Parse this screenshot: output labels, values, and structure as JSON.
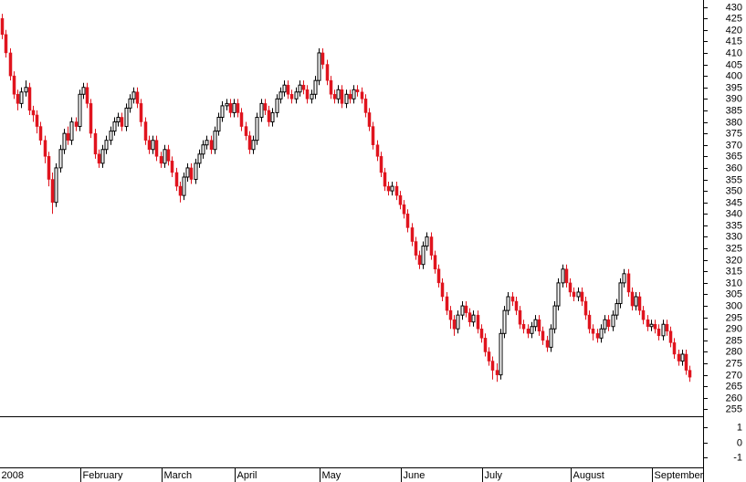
{
  "chart_data": [
    {
      "type": "candlestick",
      "up_color": "#ffffff",
      "down_color": "#e0141e",
      "xlim": [
        -0.5,
        181.5
      ],
      "ylim": [
        252,
        433
      ],
      "yticks": [
        255,
        260,
        265,
        270,
        275,
        280,
        285,
        290,
        295,
        300,
        305,
        310,
        315,
        320,
        325,
        330,
        335,
        340,
        345,
        350,
        355,
        360,
        365,
        370,
        375,
        380,
        385,
        390,
        395,
        400,
        405,
        410,
        415,
        420,
        425,
        430
      ],
      "xticks": [
        {
          "value": 0,
          "label": "2008"
        },
        {
          "value": 21,
          "label": "February"
        },
        {
          "value": 42,
          "label": "March"
        },
        {
          "value": 61,
          "label": "April"
        },
        {
          "value": 83,
          "label": "May"
        },
        {
          "value": 104,
          "label": "June"
        },
        {
          "value": 125,
          "label": "July"
        },
        {
          "value": 148,
          "label": "August"
        },
        {
          "value": 169,
          "label": "September"
        }
      ],
      "ohlc": [
        [
          425,
          427,
          416,
          418
        ],
        [
          418,
          420,
          408,
          410
        ],
        [
          410,
          412,
          398,
          400
        ],
        [
          400,
          402,
          390,
          392
        ],
        [
          392,
          394,
          385,
          388
        ],
        [
          388,
          395,
          386,
          393
        ],
        [
          393,
          398,
          391,
          395
        ],
        [
          395,
          397,
          383,
          385
        ],
        [
          385,
          387,
          380,
          383
        ],
        [
          383,
          385,
          375,
          378
        ],
        [
          378,
          380,
          370,
          372
        ],
        [
          372,
          374,
          362,
          365
        ],
        [
          365,
          367,
          352,
          355
        ],
        [
          355,
          358,
          340,
          345
        ],
        [
          345,
          362,
          343,
          360
        ],
        [
          360,
          370,
          358,
          368
        ],
        [
          368,
          377,
          366,
          375
        ],
        [
          375,
          378,
          370,
          372
        ],
        [
          372,
          382,
          370,
          380
        ],
        [
          380,
          382,
          376,
          378
        ],
        [
          378,
          394,
          376,
          392
        ],
        [
          392,
          397,
          390,
          395
        ],
        [
          395,
          397,
          386,
          388
        ],
        [
          388,
          390,
          373,
          375
        ],
        [
          375,
          377,
          364,
          366
        ],
        [
          366,
          368,
          360,
          362
        ],
        [
          362,
          370,
          360,
          368
        ],
        [
          368,
          374,
          366,
          372
        ],
        [
          372,
          378,
          370,
          376
        ],
        [
          376,
          382,
          374,
          380
        ],
        [
          380,
          384,
          378,
          382
        ],
        [
          382,
          384,
          376,
          378
        ],
        [
          378,
          388,
          376,
          386
        ],
        [
          386,
          392,
          384,
          390
        ],
        [
          390,
          395,
          388,
          393
        ],
        [
          393,
          395,
          386,
          388
        ],
        [
          388,
          390,
          378,
          380
        ],
        [
          380,
          382,
          370,
          372
        ],
        [
          372,
          374,
          366,
          368
        ],
        [
          368,
          374,
          366,
          372
        ],
        [
          372,
          374,
          363,
          365
        ],
        [
          365,
          367,
          360,
          362
        ],
        [
          362,
          370,
          360,
          368
        ],
        [
          368,
          370,
          361,
          363
        ],
        [
          363,
          365,
          356,
          358
        ],
        [
          358,
          360,
          350,
          352
        ],
        [
          352,
          354,
          345,
          348
        ],
        [
          348,
          358,
          346,
          356
        ],
        [
          356,
          362,
          354,
          360
        ],
        [
          360,
          362,
          353,
          355
        ],
        [
          355,
          364,
          353,
          362
        ],
        [
          362,
          368,
          360,
          366
        ],
        [
          366,
          372,
          364,
          370
        ],
        [
          370,
          374,
          368,
          372
        ],
        [
          372,
          374,
          366,
          368
        ],
        [
          368,
          378,
          366,
          376
        ],
        [
          376,
          384,
          374,
          382
        ],
        [
          382,
          389,
          380,
          387
        ],
        [
          387,
          390,
          385,
          388
        ],
        [
          388,
          390,
          382,
          384
        ],
        [
          384,
          390,
          382,
          388
        ],
        [
          388,
          390,
          382,
          384
        ],
        [
          384,
          386,
          376,
          378
        ],
        [
          378,
          380,
          372,
          374
        ],
        [
          374,
          376,
          366,
          368
        ],
        [
          368,
          374,
          366,
          372
        ],
        [
          372,
          384,
          370,
          382
        ],
        [
          382,
          390,
          380,
          388
        ],
        [
          388,
          390,
          383,
          385
        ],
        [
          385,
          387,
          378,
          380
        ],
        [
          380,
          386,
          378,
          384
        ],
        [
          384,
          392,
          382,
          390
        ],
        [
          390,
          395,
          388,
          393
        ],
        [
          393,
          398,
          391,
          396
        ],
        [
          396,
          398,
          390,
          392
        ],
        [
          392,
          394,
          388,
          390
        ],
        [
          390,
          395,
          388,
          393
        ],
        [
          393,
          398,
          391,
          396
        ],
        [
          396,
          398,
          392,
          394
        ],
        [
          394,
          396,
          388,
          390
        ],
        [
          390,
          394,
          388,
          392
        ],
        [
          392,
          400,
          390,
          398
        ],
        [
          398,
          412,
          396,
          410
        ],
        [
          410,
          412,
          403,
          405
        ],
        [
          405,
          407,
          396,
          398
        ],
        [
          398,
          400,
          390,
          392
        ],
        [
          392,
          394,
          388,
          390
        ],
        [
          390,
          396,
          388,
          394
        ],
        [
          394,
          396,
          386,
          388
        ],
        [
          388,
          394,
          386,
          392
        ],
        [
          392,
          394,
          388,
          390
        ],
        [
          390,
          396,
          388,
          394
        ],
        [
          394,
          396,
          391,
          393
        ],
        [
          393,
          395,
          388,
          390
        ],
        [
          390,
          392,
          382,
          384
        ],
        [
          384,
          386,
          376,
          378
        ],
        [
          378,
          380,
          368,
          370
        ],
        [
          370,
          372,
          363,
          365
        ],
        [
          365,
          367,
          356,
          358
        ],
        [
          358,
          360,
          350,
          352
        ],
        [
          352,
          354,
          348,
          350
        ],
        [
          350,
          354,
          348,
          352
        ],
        [
          352,
          354,
          346,
          348
        ],
        [
          348,
          350,
          342,
          344
        ],
        [
          344,
          346,
          338,
          340
        ],
        [
          340,
          342,
          332,
          334
        ],
        [
          334,
          336,
          326,
          328
        ],
        [
          328,
          330,
          320,
          322
        ],
        [
          322,
          324,
          316,
          318
        ],
        [
          318,
          328,
          316,
          326
        ],
        [
          326,
          332,
          324,
          330
        ],
        [
          330,
          332,
          320,
          322
        ],
        [
          322,
          324,
          314,
          316
        ],
        [
          316,
          318,
          308,
          310
        ],
        [
          310,
          312,
          302,
          304
        ],
        [
          304,
          306,
          296,
          298
        ],
        [
          298,
          300,
          290,
          294
        ],
        [
          294,
          296,
          287,
          290
        ],
        [
          290,
          298,
          288,
          296
        ],
        [
          296,
          302,
          294,
          300
        ],
        [
          300,
          302,
          295,
          297
        ],
        [
          297,
          299,
          291,
          293
        ],
        [
          293,
          298,
          291,
          296
        ],
        [
          296,
          298,
          288,
          290
        ],
        [
          290,
          292,
          284,
          286
        ],
        [
          286,
          288,
          278,
          280
        ],
        [
          280,
          282,
          274,
          276
        ],
        [
          276,
          278,
          268,
          272
        ],
        [
          272,
          275,
          267,
          270
        ],
        [
          270,
          290,
          268,
          288
        ],
        [
          288,
          300,
          286,
          298
        ],
        [
          298,
          306,
          296,
          304
        ],
        [
          304,
          306,
          300,
          302
        ],
        [
          302,
          304,
          296,
          298
        ],
        [
          298,
          300,
          290,
          292
        ],
        [
          292,
          294,
          288,
          290
        ],
        [
          290,
          292,
          286,
          288
        ],
        [
          288,
          293,
          286,
          291
        ],
        [
          291,
          296,
          289,
          294
        ],
        [
          294,
          296,
          287,
          289
        ],
        [
          289,
          291,
          283,
          285
        ],
        [
          285,
          287,
          280,
          282
        ],
        [
          282,
          292,
          280,
          290
        ],
        [
          290,
          302,
          288,
          300
        ],
        [
          300,
          312,
          298,
          310
        ],
        [
          310,
          318,
          308,
          316
        ],
        [
          316,
          318,
          308,
          310
        ],
        [
          310,
          312,
          304,
          306
        ],
        [
          306,
          308,
          302,
          304
        ],
        [
          304,
          308,
          302,
          306
        ],
        [
          306,
          308,
          300,
          302
        ],
        [
          302,
          304,
          294,
          296
        ],
        [
          296,
          298,
          288,
          290
        ],
        [
          290,
          292,
          285,
          288
        ],
        [
          288,
          290,
          284,
          286
        ],
        [
          286,
          292,
          284,
          290
        ],
        [
          290,
          296,
          288,
          294
        ],
        [
          294,
          296,
          289,
          291
        ],
        [
          291,
          298,
          289,
          296
        ],
        [
          296,
          303,
          294,
          301
        ],
        [
          301,
          312,
          299,
          310
        ],
        [
          310,
          316,
          308,
          314
        ],
        [
          314,
          316,
          304,
          306
        ],
        [
          306,
          308,
          298,
          300
        ],
        [
          300,
          306,
          298,
          304
        ],
        [
          304,
          306,
          296,
          298
        ],
        [
          298,
          300,
          292,
          294
        ],
        [
          294,
          296,
          289,
          291
        ],
        [
          291,
          294,
          289,
          292
        ],
        [
          292,
          294,
          288,
          290
        ],
        [
          290,
          292,
          285,
          287
        ],
        [
          287,
          294,
          285,
          292
        ],
        [
          292,
          294,
          287,
          289
        ],
        [
          289,
          291,
          282,
          284
        ],
        [
          284,
          286,
          277,
          279
        ],
        [
          279,
          281,
          274,
          276
        ],
        [
          276,
          281,
          274,
          279
        ],
        [
          279,
          281,
          270,
          272
        ],
        [
          272,
          274,
          267,
          269
        ]
      ]
    },
    {
      "type": "indicator",
      "ylim": [
        -1.7,
        1.7
      ],
      "yticks": [
        1,
        0,
        -1
      ]
    }
  ]
}
